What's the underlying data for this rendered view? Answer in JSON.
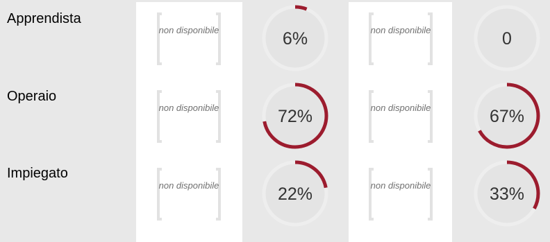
{
  "rows": [
    {
      "label": "Apprendista",
      "col1": {
        "text": "non disponibile"
      },
      "col2": {
        "display": "6%",
        "percent": 6
      },
      "col3": {
        "text": "non disponibile"
      },
      "col4": {
        "display": "0",
        "percent": 0
      }
    },
    {
      "label": "Operaio",
      "col1": {
        "text": "non disponibile"
      },
      "col2": {
        "display": "72%",
        "percent": 72
      },
      "col3": {
        "text": "non disponibile"
      },
      "col4": {
        "display": "67%",
        "percent": 67
      }
    },
    {
      "label": "Impiegato",
      "col1": {
        "text": "non disponibile"
      },
      "col2": {
        "display": "22%",
        "percent": 22
      },
      "col3": {
        "text": "non disponibile"
      },
      "col4": {
        "display": "33%",
        "percent": 33
      }
    }
  ],
  "colors": {
    "ring_fill": "#9c1c2e",
    "ring_track_outer": "#eeeeee",
    "ring_inner": "#e4e4e4",
    "placeholder_bracket": "#e2e2e2",
    "placeholder_text": "#707070",
    "background": "#e8e8e8",
    "panel": "#ffffff"
  }
}
